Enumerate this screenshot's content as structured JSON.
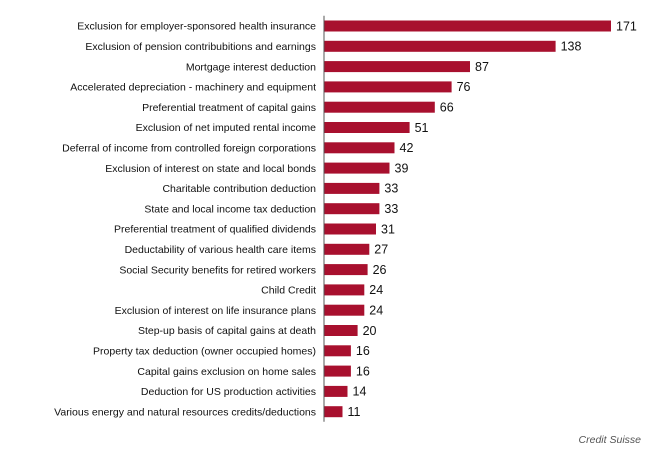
{
  "chart_data": {
    "type": "bar",
    "orientation": "horizontal",
    "title": "",
    "xlabel": "",
    "ylabel": "",
    "categories": [
      "Exclusion for employer-sponsored health insurance",
      "Exclusion of pension contribubitions and earnings",
      "Mortgage interest deduction",
      "Accelerated depreciation - machinery and equipment",
      "Preferential treatment of capital gains",
      "Exclusion of net imputed rental income",
      "Deferral of income from controlled foreign corporations",
      "Exclusion of interest on state and local bonds",
      "Charitable contribution deduction",
      "State and local income tax deduction",
      "Preferential treatment of qualified dividends",
      "Deductability of various health care items",
      "Social Security benefits for retired workers",
      "Child Credit",
      "Exclusion of interest on life insurance plans",
      "Step-up basis of capital gains at death",
      "Property tax deduction (owner occupied homes)",
      "Capital gains exclusion on home sales",
      "Deduction for US production activities",
      "Various energy and natural resources credits/deductions"
    ],
    "values": [
      171,
      138,
      87,
      76,
      66,
      51,
      42,
      39,
      33,
      33,
      31,
      27,
      26,
      24,
      24,
      20,
      16,
      16,
      14,
      11
    ],
    "xlim": [
      0,
      171
    ],
    "grid": false,
    "legend": "none",
    "bar_color": "#a8102e"
  },
  "source": "Credit Suisse"
}
